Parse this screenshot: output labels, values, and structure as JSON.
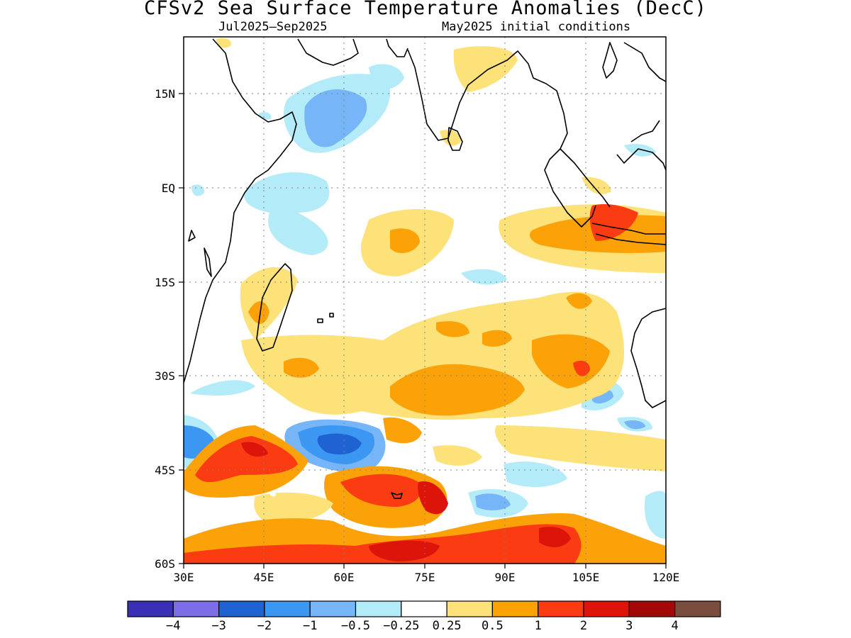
{
  "title": "CFSv2 Sea Surface Temperature Anomalies (DecC)",
  "subtitle_left": "Jul2025–Sep2025",
  "subtitle_right": "May2025 initial conditions",
  "map": {
    "lat_labels": [
      "15N",
      "EQ",
      "15S",
      "30S",
      "45S",
      "60S"
    ],
    "lon_labels": [
      "30E",
      "45E",
      "60E",
      "75E",
      "90E",
      "105E",
      "120E"
    ],
    "lon_range": [
      30,
      120
    ],
    "lat_range": [
      -60,
      24
    ],
    "grid": "dotted"
  },
  "colorbar": {
    "colors": [
      "#3a2fb5",
      "#7d6ee8",
      "#1f63d2",
      "#3c97f2",
      "#76b5f7",
      "#b3ecf8",
      "#ffffff",
      "#fde27a",
      "#fca209",
      "#fb3b12",
      "#dd1409",
      "#a30809",
      "#7a4d3e"
    ],
    "labels": [
      "−4",
      "−3",
      "−2",
      "−1",
      "−0.5",
      "−0.25",
      "0.25",
      "0.5",
      "1",
      "2",
      "3",
      "4"
    ]
  },
  "regions": [
    {
      "name": "arabian-sea-cool-anomaly",
      "level": "-1"
    },
    {
      "name": "java-sea-warm-anomaly",
      "level": "2"
    },
    {
      "name": "southern-ocean-warm-anomaly",
      "level": "2"
    },
    {
      "name": "southern-ocean-cool-anomaly",
      "level": "-2"
    }
  ]
}
